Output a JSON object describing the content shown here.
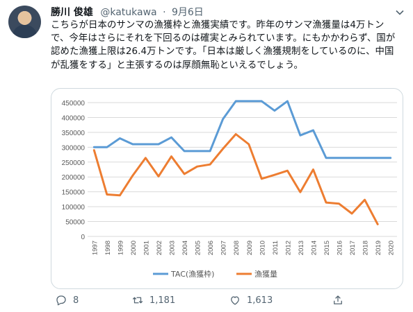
{
  "tweet": {
    "author_name": "勝川 俊雄",
    "handle": "@katukawa",
    "separator": "·",
    "date": "9月6日",
    "text": "こちらが日本のサンマの漁獲枠と漁獲実績です。昨年のサンマ漁獲量は4万トンで、今年はさらにそれを下回るのは確実とみられています。にもかかわらず、国が認めた漁獲上限は26.4万トンです。「日本は厳しく漁獲規制をしているのに、中国が乱獲をする」と主張するのは厚顔無恥といえるでしょう。"
  },
  "icons": {
    "more": "chevron-down-icon",
    "reply": "reply-icon",
    "retweet": "retweet-icon",
    "like": "like-icon",
    "share": "share-icon"
  },
  "actions": {
    "reply_count": "8",
    "retweet_count": "1,181",
    "like_count": "1,613"
  },
  "colors": {
    "tac": "#5b9bd5",
    "catch": "#ed7d31",
    "grid": "#d9d9d9",
    "axis_text": "#595959"
  },
  "chart_data": {
    "type": "line",
    "x": [
      "1997",
      "1998",
      "1999",
      "2000",
      "2001",
      "2002",
      "2003",
      "2004",
      "2005",
      "2006",
      "2007",
      "2008",
      "2009",
      "2010",
      "2011",
      "2012",
      "2013",
      "2014",
      "2015",
      "2016",
      "2017",
      "2018",
      "2019",
      "2020"
    ],
    "ylim": [
      0,
      450000
    ],
    "yticks": [
      "0",
      "50000",
      "100000",
      "150000",
      "200000",
      "250000",
      "300000",
      "350000",
      "400000",
      "450000"
    ],
    "grid": true,
    "legend": "bottom",
    "series": [
      {
        "name": "TAC(漁獲枠)",
        "values": [
          300000,
          300000,
          330000,
          310000,
          310000,
          310000,
          333000,
          287000,
          287000,
          287000,
          395000,
          455000,
          455000,
          455000,
          423000,
          455000,
          340000,
          357000,
          264000,
          264000,
          264000,
          264000,
          264000,
          264000
        ]
      },
      {
        "name": "漁獲量",
        "values": [
          290000,
          141000,
          138000,
          205000,
          264000,
          202000,
          269000,
          210000,
          235000,
          242000,
          295000,
          344000,
          310000,
          194000,
          207000,
          221000,
          149000,
          225000,
          114000,
          110000,
          77000,
          123000,
          41000,
          null
        ]
      }
    ]
  }
}
